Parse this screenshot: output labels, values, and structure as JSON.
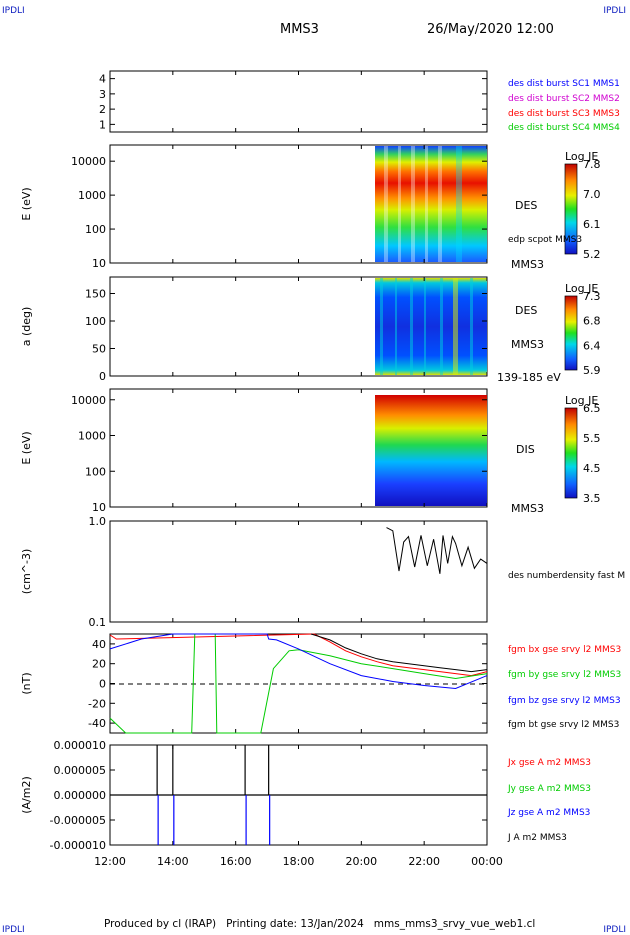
{
  "corners": {
    "tl": "IPDLI",
    "tr": "IPDLI",
    "bl": "IPDLI",
    "br": "IPDLI"
  },
  "header": {
    "spacecraft": "MMS3",
    "datetime": "26/May/2020 12:00"
  },
  "footer": "Produced by cl (IRAP)   Printing date: 13/Jan/2024   mms_mms3_srvy_vue_web1.cl",
  "time_axis": {
    "ticks": [
      "12:00",
      "14:00",
      "16:00",
      "18:00",
      "20:00",
      "22:00",
      "00:00"
    ]
  },
  "colors": {
    "mms1": "#0000ff",
    "mms2": "#d000d0",
    "mms3": "#ff0000",
    "mms4": "#00cc00",
    "black": "#000000"
  },
  "chart_data": [
    {
      "type": "line",
      "panel": "burst",
      "ylim": [
        0.5,
        4.5
      ],
      "yticks": [
        "1",
        "2",
        "3",
        "4"
      ],
      "series": [
        {
          "name": "des dist burst SC1 MMS1"
        },
        {
          "name": "des dist burst SC2 MMS2"
        },
        {
          "name": "des dist burst SC3 MMS3"
        },
        {
          "name": "des dist burst SC4 MMS4"
        }
      ]
    },
    {
      "type": "heatmap",
      "panel": "des_energy",
      "ylabel": "E (eV)",
      "yscale": "log",
      "ylim": [
        10,
        30000
      ],
      "yticks": [
        "10",
        "100",
        "1000",
        "10000"
      ],
      "labels": [
        "DES",
        "MMS3"
      ],
      "overlay": "edp scpot MMS3",
      "data_start_hour": 20.4,
      "colorbar": {
        "title": "Log JE",
        "ticks": [
          "7.8",
          "7.0",
          "6.1",
          "5.2"
        ]
      }
    },
    {
      "type": "heatmap",
      "panel": "des_pitch",
      "ylabel": "a (deg)",
      "ylim": [
        0,
        180
      ],
      "yticks": [
        "0",
        "50",
        "100",
        "150"
      ],
      "labels": [
        "DES",
        "MMS3",
        "139-185 eV"
      ],
      "data_start_hour": 20.4,
      "colorbar": {
        "title": "Log JE",
        "ticks": [
          "7.3",
          "6.8",
          "6.4",
          "5.9"
        ]
      }
    },
    {
      "type": "heatmap",
      "panel": "dis_energy",
      "ylabel": "E (eV)",
      "yscale": "log",
      "ylim": [
        10,
        20000
      ],
      "yticks": [
        "10",
        "100",
        "1000",
        "10000"
      ],
      "labels": [
        "DIS",
        "MMS3"
      ],
      "data_start_hour": 20.4,
      "colorbar": {
        "title": "Log JE",
        "ticks": [
          "6.5",
          "5.5",
          "4.5",
          "3.5"
        ]
      }
    },
    {
      "type": "line",
      "panel": "density",
      "ylabel": "(cm^-3)",
      "yscale": "log",
      "ylim": [
        0.1,
        1.0
      ],
      "yticks": [
        "1.0",
        "0.1"
      ],
      "series": [
        {
          "name": "des numberdensity fast M",
          "color": "#000000",
          "x": [
            20.8,
            21.0,
            21.2,
            21.35,
            21.5,
            21.7,
            21.9,
            22.1,
            22.3,
            22.5,
            22.6,
            22.75,
            22.9,
            23.0,
            23.2,
            23.4,
            23.6,
            23.8,
            24.0
          ],
          "y": [
            0.86,
            0.8,
            0.32,
            0.62,
            0.7,
            0.35,
            0.72,
            0.36,
            0.66,
            0.3,
            0.72,
            0.38,
            0.7,
            0.6,
            0.36,
            0.55,
            0.34,
            0.42,
            0.38
          ]
        }
      ]
    },
    {
      "type": "line",
      "panel": "bfield",
      "ylabel": "(nT)",
      "ylim": [
        -50,
        50
      ],
      "yticks": [
        "40",
        "20",
        "0",
        "-20",
        "-40"
      ],
      "series": [
        {
          "name": "fgm bx gse srvy l2 MMS3",
          "color": "#ff0000",
          "x": [
            12.0,
            12.2,
            18.5,
            19.0,
            19.5,
            20.0,
            20.5,
            21.0,
            21.5,
            22.0,
            22.5,
            23.0,
            23.5,
            24.0
          ],
          "y": [
            49,
            45,
            50,
            42,
            33,
            27,
            22,
            18,
            16,
            14,
            12,
            10,
            8,
            12
          ]
        },
        {
          "name": "fgm by gse srvy l2 MMS3",
          "color": "#00cc00",
          "x": [
            12.0,
            12.5,
            14.0,
            14.6,
            14.7,
            15.35,
            15.4,
            16.8,
            17.2,
            17.7,
            18.0,
            19.0,
            20.0,
            21.0,
            22.0,
            23.0,
            24.0
          ],
          "y": [
            -35,
            -50,
            -50,
            -50,
            50,
            50,
            -50,
            -50,
            15,
            33,
            34,
            28,
            20,
            15,
            10,
            5,
            10
          ]
        },
        {
          "name": "fgm bz gse srvy l2 MMS3",
          "color": "#0000ff",
          "x": [
            12.0,
            13.0,
            14.0,
            15.0,
            16.0,
            17.0,
            17.05,
            17.3,
            18.0,
            19.0,
            20.0,
            21.0,
            22.0,
            23.0,
            24.0
          ],
          "y": [
            35,
            45,
            50,
            50,
            50,
            50,
            45,
            44,
            35,
            20,
            8,
            2,
            -2,
            -5,
            8
          ]
        },
        {
          "name": "fgm bt gse srvy l2 MMS3",
          "color": "#000000",
          "x": [
            18.4,
            19.0,
            19.5,
            20.0,
            20.5,
            21.0,
            21.5,
            22.0,
            22.5,
            23.0,
            23.5,
            24.0
          ],
          "y": [
            50,
            44,
            36,
            30,
            25,
            22,
            20,
            18,
            16,
            14,
            12,
            14
          ]
        }
      ]
    },
    {
      "type": "line",
      "panel": "current",
      "ylabel": "(A/m2)",
      "ylim": [
        -1e-05,
        1e-05
      ],
      "yticks": [
        "0.000010",
        "0.000005",
        "0.000000",
        "-0.000005",
        "-0.000010"
      ],
      "series": [
        {
          "name": "Jx gse A m2 MMS3",
          "color": "#ff0000"
        },
        {
          "name": "Jy gse A m2 MMS3",
          "color": "#00cc00"
        },
        {
          "name": "Jz gse A m2 MMS3",
          "color": "#0000ff"
        },
        {
          "name": "J A m2 MMS3",
          "color": "#000000",
          "x": [
            13.5,
            14.0,
            16.3,
            17.05
          ],
          "y": [
            1e-05,
            1e-05,
            1e-05,
            1e-05
          ]
        }
      ]
    }
  ]
}
